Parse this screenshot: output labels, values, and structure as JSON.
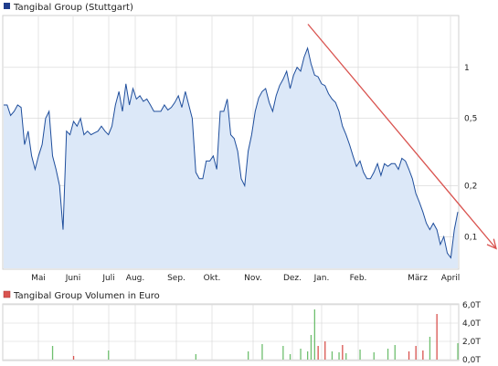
{
  "chart_data": [
    {
      "type": "area",
      "title": "Tangibal Group (Stuttgart)",
      "scale": "log",
      "y_ticks": [
        {
          "value": 0.1,
          "label": "0,1"
        },
        {
          "value": 0.2,
          "label": "0,2"
        },
        {
          "value": 0.5,
          "label": "0,5"
        },
        {
          "value": 1,
          "label": "1"
        }
      ],
      "ylim": [
        0.065,
        2.0
      ],
      "x_ticks": [
        "Mai",
        "Juni",
        "Juli",
        "Aug.",
        "Sep.",
        "Okt.",
        "Nov.",
        "Dez.",
        "Jan.",
        "Feb.",
        "März",
        "April"
      ],
      "grid": true,
      "colors": {
        "line": "#1f4e9c",
        "fill": "#dce8f8",
        "trend": "#d9534f",
        "grid": "#d4d4d4"
      },
      "series": [
        {
          "values": [
            0.6,
            0.6,
            0.52,
            0.55,
            0.6,
            0.58,
            0.35,
            0.42,
            0.3,
            0.25,
            0.3,
            0.35,
            0.5,
            0.55,
            0.3,
            0.25,
            0.2,
            0.11,
            0.42,
            0.4,
            0.48,
            0.45,
            0.5,
            0.4,
            0.42,
            0.4,
            0.41,
            0.42,
            0.45,
            0.42,
            0.4,
            0.45,
            0.6,
            0.72,
            0.55,
            0.8,
            0.6,
            0.75,
            0.65,
            0.68,
            0.63,
            0.65,
            0.6,
            0.55,
            0.55,
            0.55,
            0.6,
            0.56,
            0.58,
            0.62,
            0.68,
            0.58,
            0.72,
            0.6,
            0.5,
            0.24,
            0.22,
            0.22,
            0.28,
            0.28,
            0.3,
            0.25,
            0.55,
            0.55,
            0.65,
            0.4,
            0.38,
            0.32,
            0.22,
            0.2,
            0.32,
            0.4,
            0.55,
            0.66,
            0.72,
            0.75,
            0.62,
            0.55,
            0.68,
            0.78,
            0.85,
            0.95,
            0.75,
            0.9,
            1.0,
            0.95,
            1.15,
            1.3,
            1.05,
            0.9,
            0.88,
            0.8,
            0.78,
            0.7,
            0.65,
            0.62,
            0.55,
            0.45,
            0.4,
            0.35,
            0.3,
            0.26,
            0.28,
            0.24,
            0.22,
            0.22,
            0.24,
            0.27,
            0.23,
            0.27,
            0.26,
            0.27,
            0.27,
            0.25,
            0.29,
            0.28,
            0.25,
            0.22,
            0.18,
            0.16,
            0.14,
            0.12,
            0.11,
            0.12,
            0.11,
            0.09,
            0.1,
            0.08,
            0.075,
            0.11,
            0.14
          ]
        }
      ],
      "trendline": {
        "from": 1.8,
        "to": 0.085
      }
    },
    {
      "type": "bar",
      "title": "Tangibal Group Volumen in Euro",
      "y_ticks": [
        {
          "value": 0,
          "label": "0,0T"
        },
        {
          "value": 2000,
          "label": "2,0T"
        },
        {
          "value": 4000,
          "label": "4,0T"
        },
        {
          "value": 6000,
          "label": "6,0T"
        }
      ],
      "ylim": [
        0,
        6000
      ],
      "grid": true,
      "colors": {
        "up": "#6fbf6f",
        "down": "#d9534f",
        "grid": "#d4d4d4"
      },
      "series": [
        {
          "values": [
            {
              "idx": 14,
              "v": 1500,
              "c": "up"
            },
            {
              "idx": 20,
              "v": 400,
              "c": "down"
            },
            {
              "idx": 30,
              "v": 1000,
              "c": "up"
            },
            {
              "idx": 55,
              "v": 600,
              "c": "up"
            },
            {
              "idx": 70,
              "v": 900,
              "c": "up"
            },
            {
              "idx": 74,
              "v": 1700,
              "c": "up"
            },
            {
              "idx": 80,
              "v": 1500,
              "c": "up"
            },
            {
              "idx": 82,
              "v": 600,
              "c": "up"
            },
            {
              "idx": 85,
              "v": 1200,
              "c": "up"
            },
            {
              "idx": 87,
              "v": 900,
              "c": "up"
            },
            {
              "idx": 88,
              "v": 2700,
              "c": "up"
            },
            {
              "idx": 89,
              "v": 5500,
              "c": "up"
            },
            {
              "idx": 90,
              "v": 1500,
              "c": "down"
            },
            {
              "idx": 92,
              "v": 2000,
              "c": "down"
            },
            {
              "idx": 94,
              "v": 900,
              "c": "up"
            },
            {
              "idx": 96,
              "v": 800,
              "c": "up"
            },
            {
              "idx": 97,
              "v": 1600,
              "c": "down"
            },
            {
              "idx": 98,
              "v": 700,
              "c": "up"
            },
            {
              "idx": 102,
              "v": 1100,
              "c": "up"
            },
            {
              "idx": 106,
              "v": 800,
              "c": "up"
            },
            {
              "idx": 110,
              "v": 1200,
              "c": "up"
            },
            {
              "idx": 112,
              "v": 1600,
              "c": "up"
            },
            {
              "idx": 116,
              "v": 900,
              "c": "down"
            },
            {
              "idx": 118,
              "v": 1500,
              "c": "down"
            },
            {
              "idx": 120,
              "v": 1000,
              "c": "down"
            },
            {
              "idx": 122,
              "v": 2500,
              "c": "up"
            },
            {
              "idx": 124,
              "v": 5000,
              "c": "down"
            },
            {
              "idx": 130,
              "v": 1800,
              "c": "up"
            }
          ]
        }
      ]
    }
  ]
}
